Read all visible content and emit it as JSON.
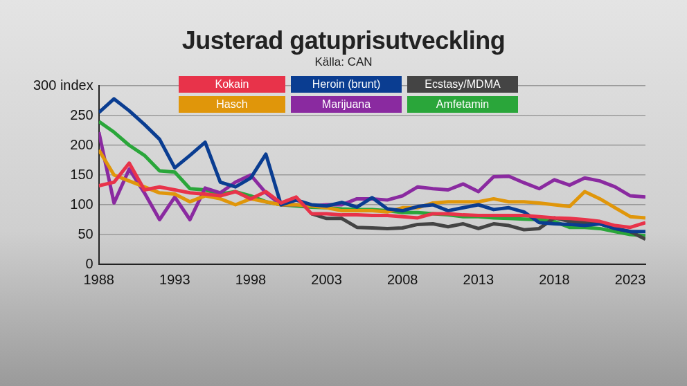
{
  "chart_data": {
    "type": "line",
    "title": "Justerad gatuprisutveckling",
    "subtitle": "Källa: CAN",
    "x": [
      1988,
      1989,
      1990,
      1991,
      1992,
      1993,
      1994,
      1995,
      1996,
      1997,
      1998,
      1999,
      2000,
      2001,
      2002,
      2003,
      2004,
      2005,
      2006,
      2007,
      2008,
      2009,
      2010,
      2011,
      2012,
      2013,
      2014,
      2015,
      2016,
      2017,
      2018,
      2019,
      2020,
      2021,
      2022,
      2023,
      2024
    ],
    "xlim": [
      1988,
      2024
    ],
    "xticks": [
      1988,
      1993,
      1998,
      2003,
      2008,
      2013,
      2018,
      2023
    ],
    "ylim": [
      0,
      300
    ],
    "yticks": [
      0,
      50,
      100,
      150,
      200,
      250,
      {
        "value": 300,
        "label": "300 index"
      }
    ],
    "grid": true,
    "legend": "top",
    "series": [
      {
        "name": "Kokain",
        "color": "#e8334a",
        "values": [
          132,
          138,
          170,
          125,
          130,
          125,
          120,
          118,
          115,
          122,
          110,
          122,
          103,
          113,
          85,
          85,
          83,
          83,
          82,
          82,
          80,
          78,
          85,
          85,
          83,
          82,
          82,
          82,
          82,
          80,
          78,
          77,
          75,
          72,
          65,
          62,
          70
        ]
      },
      {
        "name": "Heroin (brunt)",
        "color": "#0a3d91",
        "values": [
          255,
          278,
          258,
          235,
          210,
          162,
          183,
          205,
          138,
          130,
          145,
          185,
          100,
          108,
          100,
          98,
          104,
          96,
          112,
          93,
          90,
          97,
          100,
          90,
          95,
          100,
          92,
          95,
          88,
          70,
          68,
          67,
          65,
          68,
          60,
          55,
          55
        ]
      },
      {
        "name": "Ecstasy/MDMA",
        "color": "#444444",
        "values": [
          null,
          null,
          null,
          null,
          null,
          null,
          null,
          null,
          null,
          null,
          null,
          null,
          null,
          null,
          85,
          77,
          77,
          62,
          61,
          60,
          61,
          67,
          68,
          63,
          68,
          60,
          68,
          65,
          58,
          60,
          78,
          72,
          70,
          68,
          60,
          55,
          42
        ]
      },
      {
        "name": "Hasch",
        "color": "#e0960a",
        "values": [
          192,
          150,
          140,
          130,
          120,
          118,
          105,
          115,
          110,
          100,
          110,
          105,
          100,
          100,
          98,
          95,
          90,
          90,
          90,
          88,
          95,
          95,
          103,
          105,
          105,
          105,
          110,
          105,
          105,
          103,
          100,
          97,
          122,
          110,
          95,
          80,
          78
        ]
      },
      {
        "name": "Marijuana",
        "color": "#8a2aa0",
        "values": [
          222,
          103,
          160,
          120,
          75,
          113,
          75,
          128,
          120,
          138,
          150,
          120,
          100,
          100,
          98,
          100,
          100,
          110,
          110,
          108,
          115,
          130,
          127,
          125,
          135,
          122,
          147,
          148,
          137,
          127,
          142,
          133,
          145,
          140,
          130,
          115,
          113
        ]
      },
      {
        "name": "Amfetamin",
        "color": "#2aa63a",
        "values": [
          240,
          222,
          200,
          183,
          157,
          155,
          127,
          125,
          118,
          122,
          115,
          105,
          100,
          98,
          96,
          95,
          93,
          92,
          92,
          90,
          87,
          87,
          85,
          83,
          80,
          80,
          78,
          77,
          76,
          75,
          72,
          62,
          62,
          60,
          55,
          50,
          48
        ]
      }
    ]
  }
}
